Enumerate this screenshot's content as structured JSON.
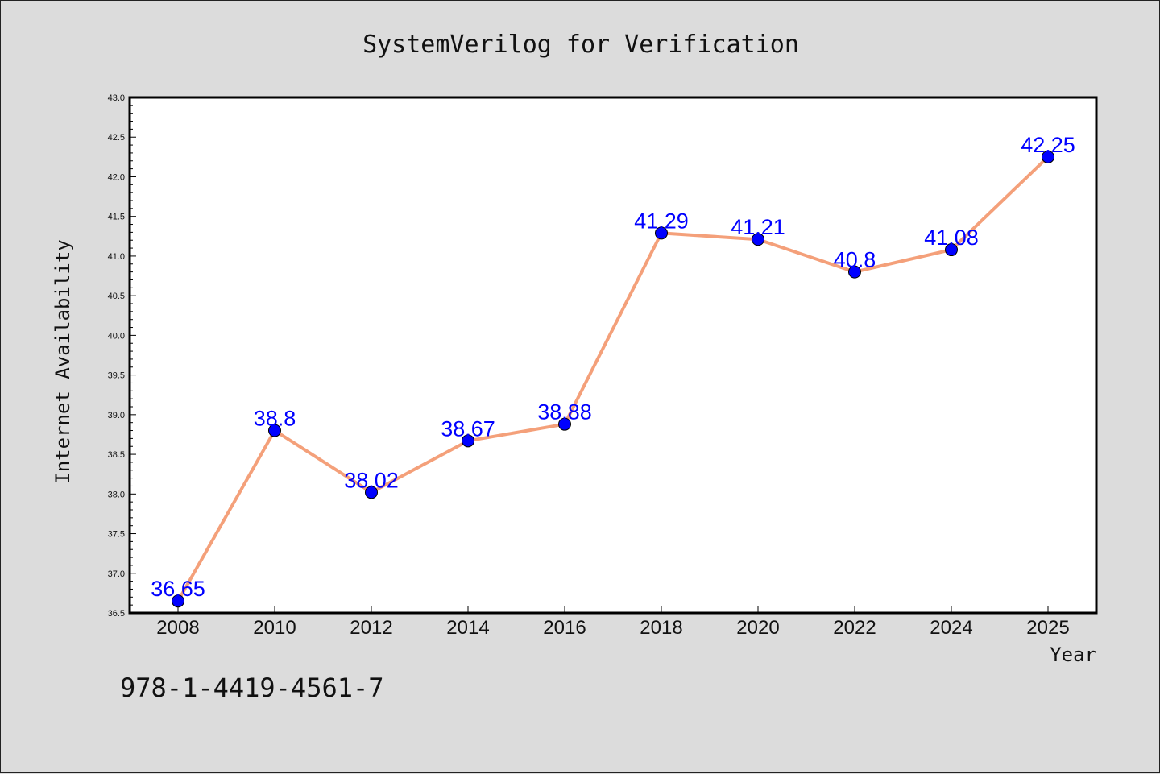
{
  "chart_data": {
    "type": "line",
    "title": "SystemVerilog for Verification",
    "xlabel": "Year",
    "ylabel": "Internet Availability",
    "categories": [
      "2008",
      "2010",
      "2012",
      "2014",
      "2016",
      "2018",
      "2020",
      "2022",
      "2024",
      "2025"
    ],
    "series": [
      {
        "values": [
          36.65,
          38.8,
          38.02,
          38.67,
          38.88,
          41.29,
          41.21,
          40.8,
          41.08,
          42.25
        ],
        "line_color": "#f4a07a",
        "marker_color": "#0000ff"
      }
    ],
    "data_labels": [
      "36.65",
      "38.8",
      "38.02",
      "38.67",
      "38.88",
      "41.29",
      "41.21",
      "40.8",
      "41.08",
      "42.25"
    ],
    "ylim": [
      36.5,
      43.0
    ],
    "yticks": [
      "36.5",
      "37.0",
      "37.5",
      "38.0",
      "38.5",
      "39.0",
      "39.5",
      "40.0",
      "40.5",
      "41.0",
      "41.5",
      "42.0",
      "42.5",
      "43.0"
    ],
    "grid": false,
    "legend": "none"
  },
  "footer": {
    "isbn": "978-1-4419-4561-7"
  }
}
